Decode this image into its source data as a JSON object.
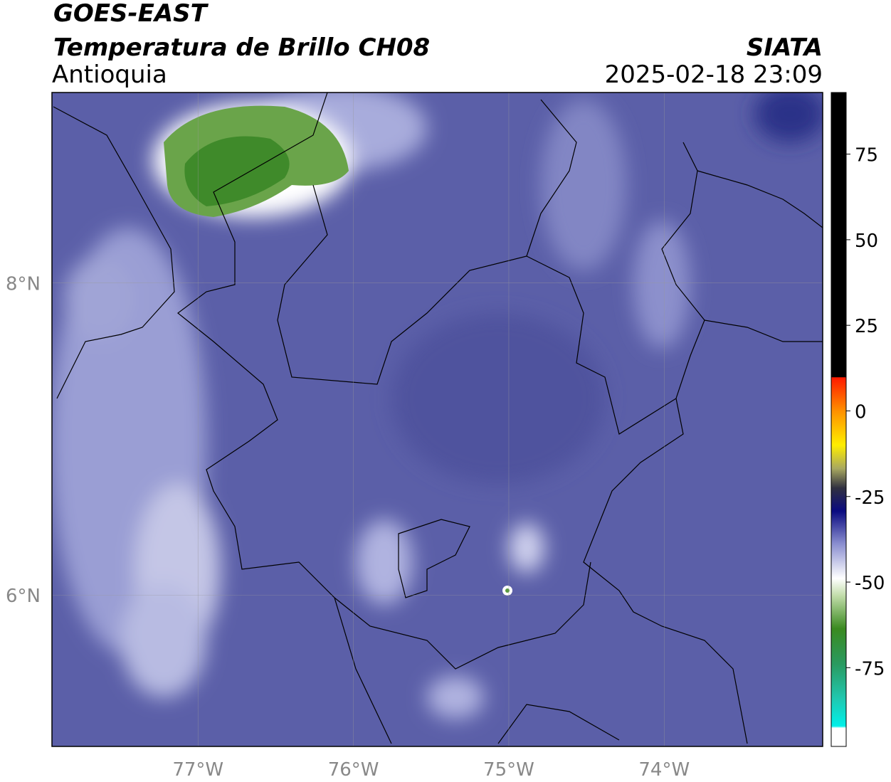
{
  "header": {
    "title": "GOES-EAST",
    "subtitle": "Temperatura de Brillo CH08",
    "region": "Antioquia",
    "source": "SIATA",
    "datetime": "2025-02-18 23:09"
  },
  "map": {
    "xlim": [
      -77.94,
      -72.98
    ],
    "ylim": [
      5.03,
      9.22
    ],
    "xticks": [
      {
        "value": -77,
        "label": "77°W"
      },
      {
        "value": -76,
        "label": "76°W"
      },
      {
        "value": -75,
        "label": "75°W"
      },
      {
        "value": -74,
        "label": "74°W"
      }
    ],
    "yticks": [
      {
        "value": 8,
        "label": "8°N"
      },
      {
        "value": 6,
        "label": "6°N"
      }
    ]
  },
  "colorbar": {
    "lim": [
      -98,
      93
    ],
    "ticks": [
      75,
      50,
      25,
      0,
      -25,
      -50,
      -75
    ]
  }
}
